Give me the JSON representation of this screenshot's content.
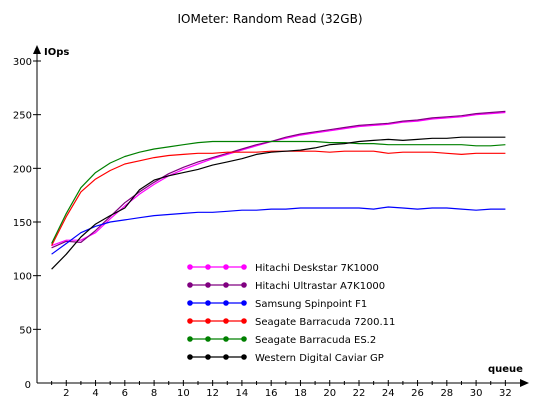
{
  "chart_data": {
    "type": "line",
    "title": "IOMeter: Random Read (32GB)",
    "ylabel": "IOps",
    "xlabel": "queue",
    "ylim": [
      0,
      300
    ],
    "xlim": [
      0,
      33
    ],
    "yticks": [
      0,
      50,
      100,
      150,
      200,
      250,
      300
    ],
    "xticks": [
      0,
      2,
      4,
      6,
      8,
      10,
      12,
      14,
      16,
      18,
      20,
      22,
      24,
      26,
      28,
      30,
      32
    ],
    "grid": false,
    "legend_position": "bottom-center-left",
    "series": [
      {
        "name": "Hitachi Deskstar 7K1000",
        "color": "#ff00ff",
        "x": [
          1,
          2,
          3,
          4,
          5,
          6,
          7,
          8,
          9,
          10,
          11,
          12,
          13,
          14,
          15,
          16,
          17,
          18,
          19,
          20,
          21,
          22,
          23,
          24,
          25,
          26,
          27,
          28,
          29,
          30,
          31,
          32
        ],
        "y": [
          128,
          133,
          133,
          140,
          153,
          165,
          176,
          185,
          193,
          199,
          204,
          209,
          213,
          217,
          221,
          225,
          228,
          231,
          233,
          235,
          237,
          239,
          240,
          241,
          243,
          244,
          246,
          247,
          248,
          250,
          251,
          252
        ]
      },
      {
        "name": "Hitachi Ultrastar A7K1000",
        "color": "#800080",
        "x": [
          1,
          2,
          3,
          4,
          5,
          6,
          7,
          8,
          9,
          10,
          11,
          12,
          13,
          14,
          15,
          16,
          17,
          18,
          19,
          20,
          21,
          22,
          23,
          24,
          25,
          26,
          27,
          28,
          29,
          30,
          31,
          32
        ],
        "y": [
          126,
          132,
          131,
          142,
          155,
          168,
          178,
          187,
          195,
          201,
          206,
          210,
          214,
          218,
          222,
          225,
          229,
          232,
          234,
          236,
          238,
          240,
          241,
          242,
          244,
          245,
          247,
          248,
          249,
          251,
          252,
          253
        ]
      },
      {
        "name": "Samsung Spinpoint F1",
        "color": "#0000ff",
        "x": [
          1,
          2,
          3,
          4,
          5,
          6,
          7,
          8,
          9,
          10,
          11,
          12,
          13,
          14,
          15,
          16,
          17,
          18,
          19,
          20,
          21,
          22,
          23,
          24,
          25,
          26,
          27,
          28,
          29,
          30,
          31,
          32
        ],
        "y": [
          120,
          130,
          140,
          146,
          150,
          152,
          154,
          156,
          157,
          158,
          159,
          159,
          160,
          161,
          161,
          162,
          162,
          163,
          163,
          163,
          163,
          163,
          162,
          164,
          163,
          162,
          163,
          163,
          162,
          161,
          162,
          162
        ]
      },
      {
        "name": "Seagate Barracuda 7200.11",
        "color": "#ff0000",
        "x": [
          1,
          2,
          3,
          4,
          5,
          6,
          7,
          8,
          9,
          10,
          11,
          12,
          13,
          14,
          15,
          16,
          17,
          18,
          19,
          20,
          21,
          22,
          23,
          24,
          25,
          26,
          27,
          28,
          29,
          30,
          31,
          32
        ],
        "y": [
          128,
          155,
          178,
          190,
          198,
          204,
          207,
          210,
          212,
          213,
          214,
          214,
          215,
          215,
          215,
          216,
          216,
          216,
          216,
          215,
          216,
          216,
          216,
          214,
          215,
          215,
          215,
          214,
          213,
          214,
          214,
          214
        ]
      },
      {
        "name": "Seagate Barracuda ES.2",
        "color": "#008000",
        "x": [
          1,
          2,
          3,
          4,
          5,
          6,
          7,
          8,
          9,
          10,
          11,
          12,
          13,
          14,
          15,
          16,
          17,
          18,
          19,
          20,
          21,
          22,
          23,
          24,
          25,
          26,
          27,
          28,
          29,
          30,
          31,
          32
        ],
        "y": [
          130,
          158,
          182,
          196,
          205,
          211,
          215,
          218,
          220,
          222,
          224,
          225,
          225,
          225,
          225,
          225,
          225,
          225,
          225,
          224,
          224,
          223,
          223,
          222,
          222,
          222,
          222,
          222,
          222,
          221,
          221,
          222
        ]
      },
      {
        "name": "Western Digital Caviar GP",
        "color": "#000000",
        "x": [
          1,
          2,
          3,
          4,
          5,
          6,
          7,
          8,
          9,
          10,
          11,
          12,
          13,
          14,
          15,
          16,
          17,
          18,
          19,
          20,
          21,
          22,
          23,
          24,
          25,
          26,
          27,
          28,
          29,
          30,
          31,
          32
        ],
        "y": [
          106,
          120,
          136,
          148,
          156,
          163,
          180,
          189,
          193,
          196,
          199,
          203,
          206,
          209,
          213,
          215,
          216,
          217,
          219,
          222,
          223,
          225,
          226,
          227,
          226,
          227,
          228,
          228,
          229,
          229,
          229,
          229
        ]
      }
    ]
  }
}
